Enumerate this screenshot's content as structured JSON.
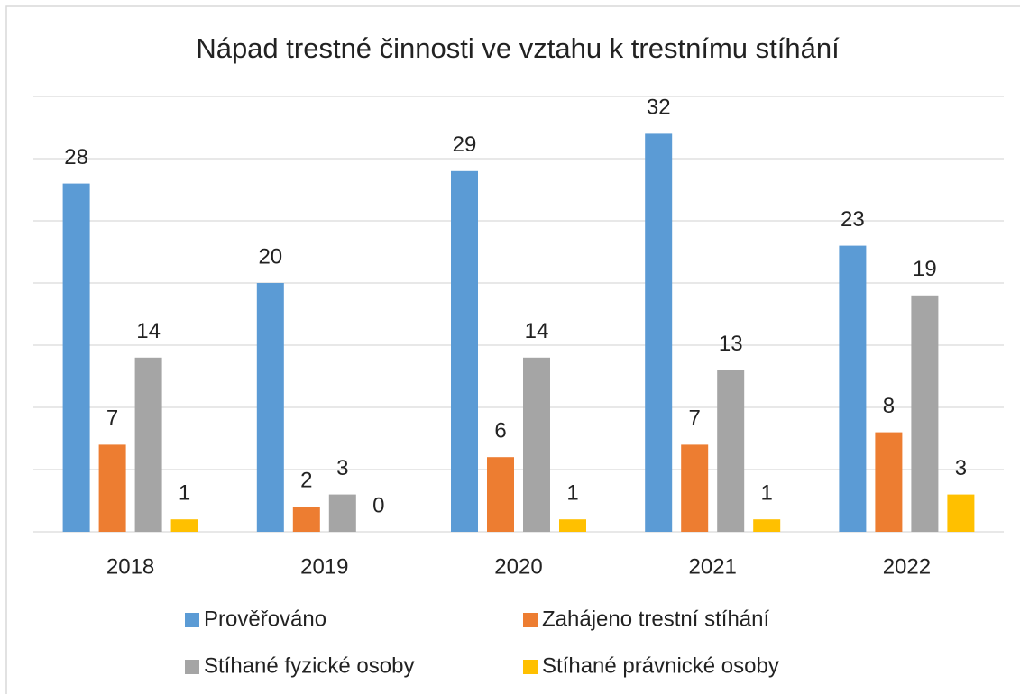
{
  "chart_data": {
    "type": "bar",
    "title": "Nápad trestné činnosti ve vztahu k trestnímu stíhání",
    "categories": [
      "2018",
      "2019",
      "2020",
      "2021",
      "2022"
    ],
    "series": [
      {
        "name": "Prověřováno",
        "color": "#5b9bd5",
        "values": [
          28,
          20,
          29,
          32,
          23
        ]
      },
      {
        "name": "Zahájeno trestní stíhání",
        "color": "#ed7d31",
        "values": [
          7,
          2,
          6,
          7,
          8
        ]
      },
      {
        "name": "Stíhané fyzické osoby",
        "color": "#a5a5a5",
        "values": [
          14,
          3,
          14,
          13,
          19
        ]
      },
      {
        "name": "Stíhané právnické osoby",
        "color": "#ffc000",
        "values": [
          1,
          0,
          1,
          1,
          3
        ]
      }
    ],
    "ylim": [
      0,
      35
    ],
    "yticks": [
      0,
      5,
      10,
      15,
      20,
      25,
      30,
      35
    ],
    "grid": true
  }
}
